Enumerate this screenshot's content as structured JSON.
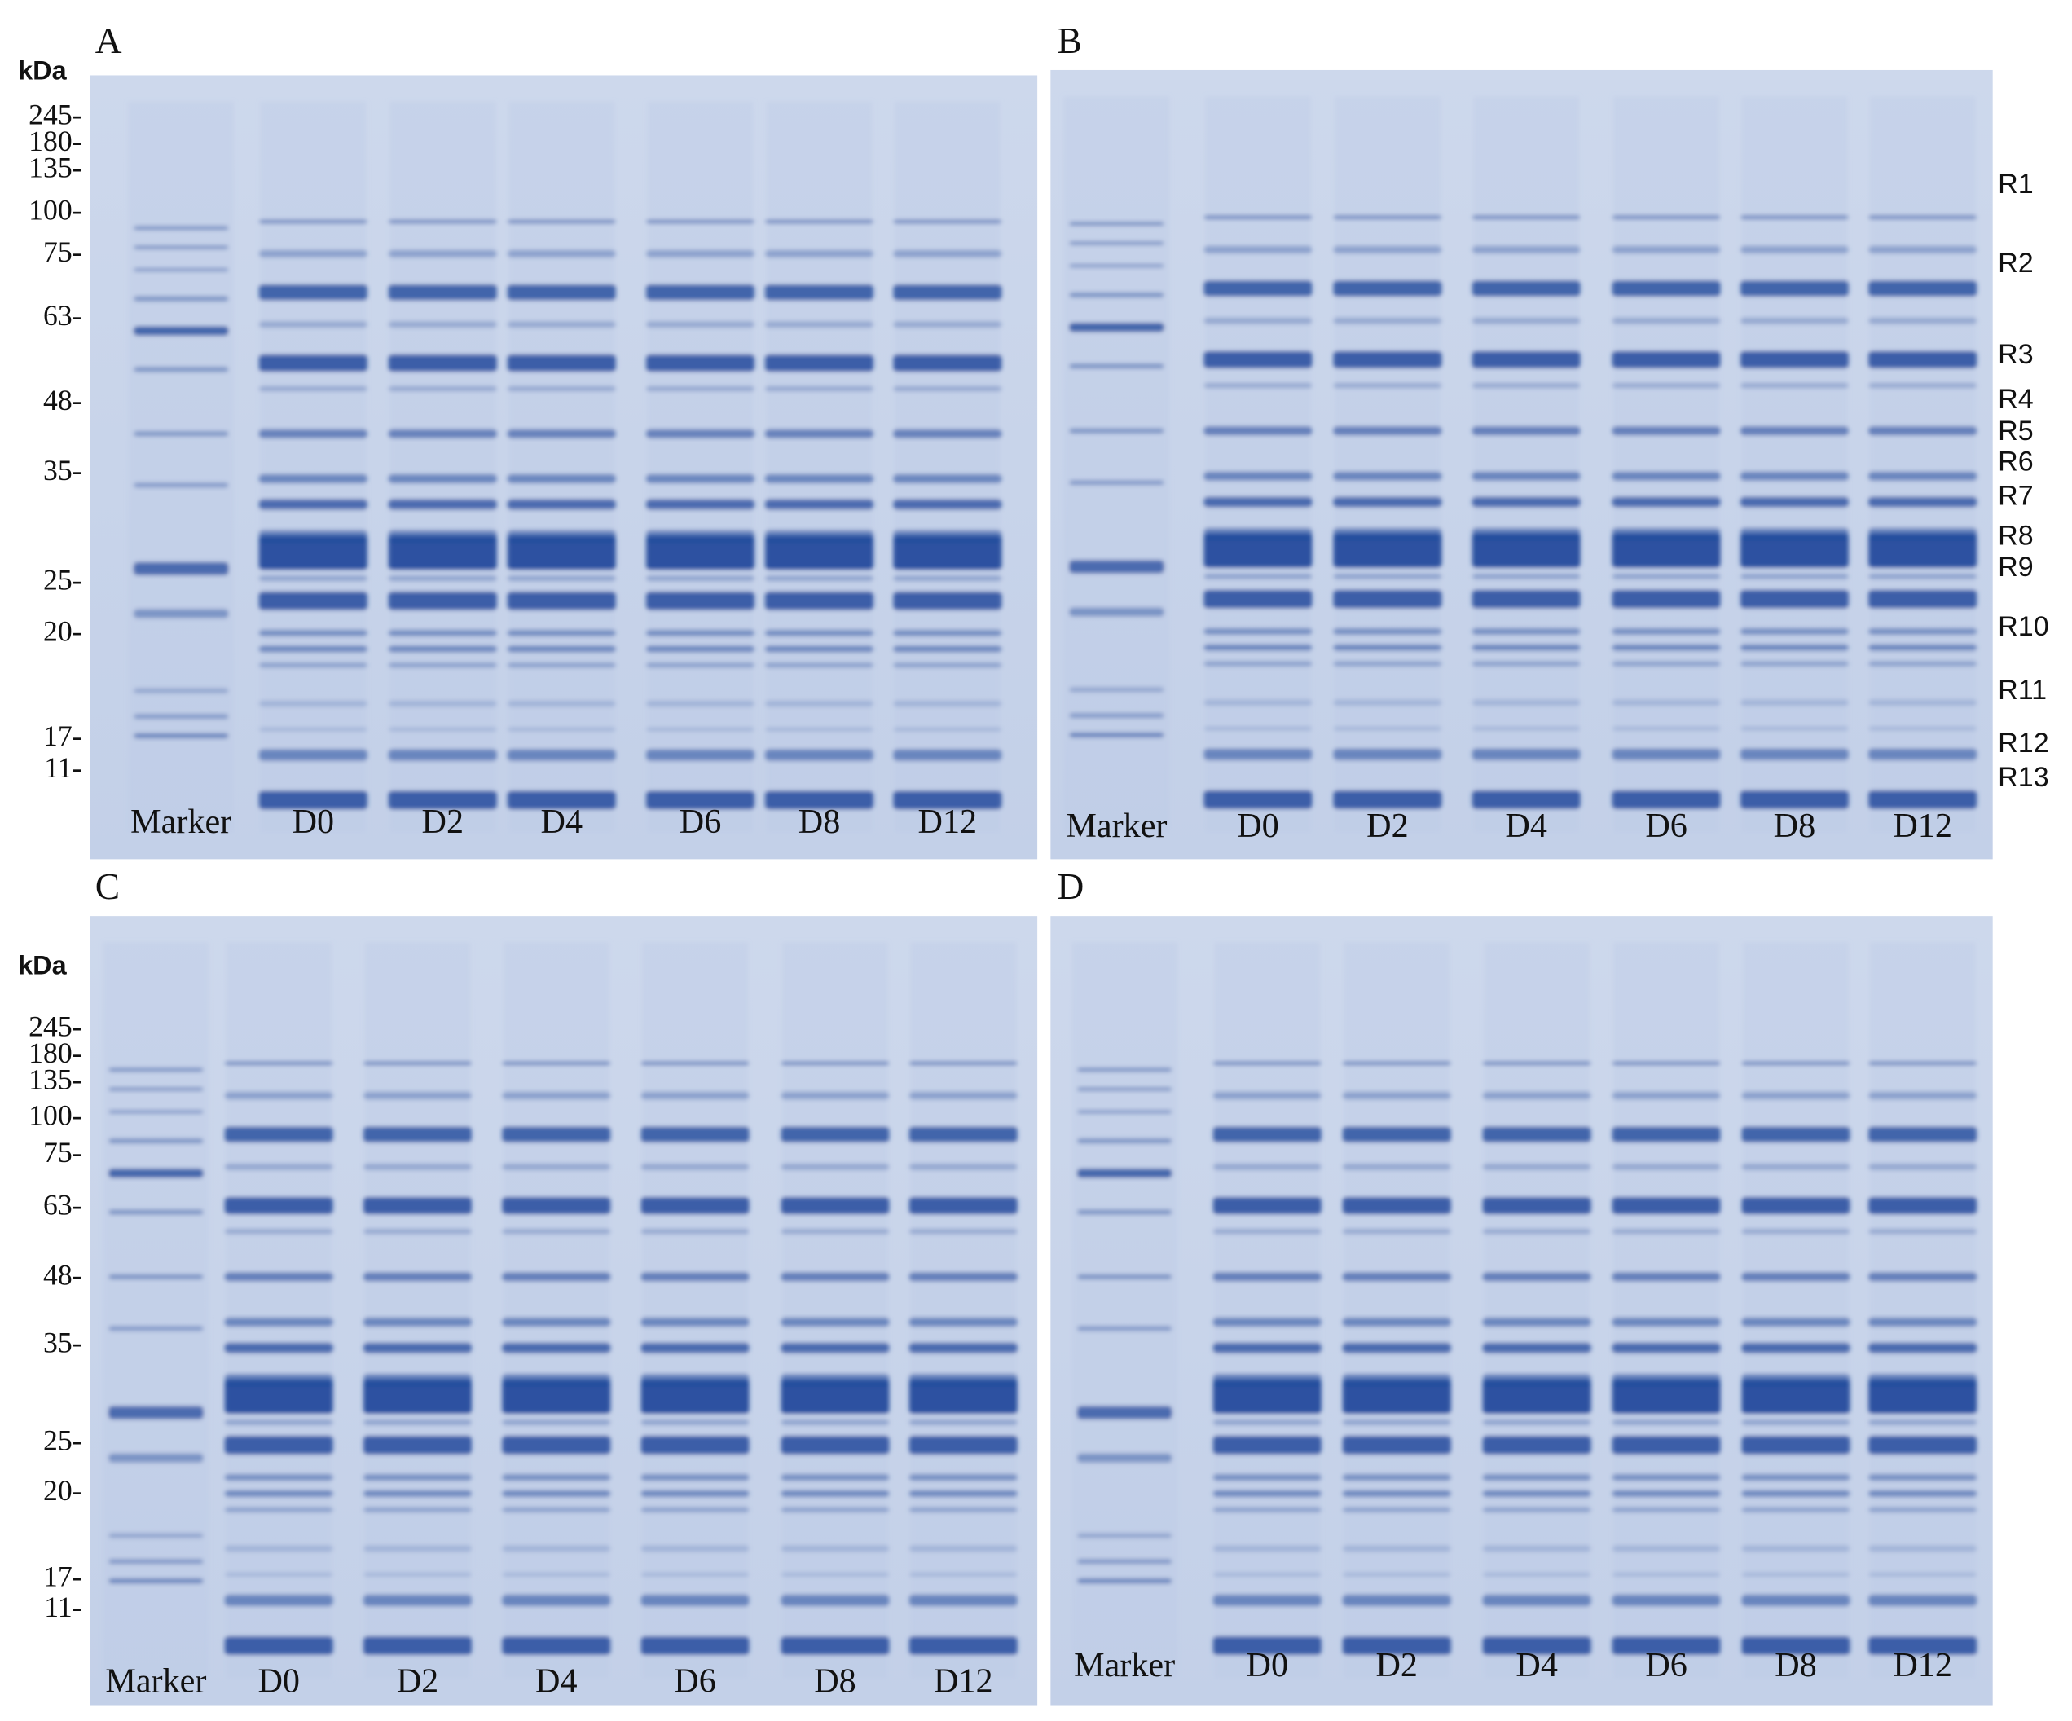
{
  "panels": [
    {
      "label": "A",
      "unit_label": "kDa",
      "markers": [
        "245-",
        "180-",
        "135-",
        "100-",
        "75-",
        "63-",
        "48-",
        "35-",
        "25-",
        "20-",
        "17-",
        "11-"
      ],
      "lanes": [
        "Marker",
        "D0",
        "D2",
        "D4",
        "D6",
        "D8",
        "D12"
      ]
    },
    {
      "label": "B",
      "lanes": [
        "Marker",
        "D0",
        "D2",
        "D4",
        "D6",
        "D8",
        "D12"
      ],
      "bands": [
        "R1",
        "R2",
        "R3",
        "R4",
        "R5",
        "R6",
        "R7",
        "R8",
        "R9",
        "R10",
        "R11",
        "R12",
        "R13"
      ]
    },
    {
      "label": "C",
      "unit_label": "kDa",
      "markers": [
        "245-",
        "180-",
        "135-",
        "100-",
        "75-",
        "63-",
        "48-",
        "35-",
        "25-",
        "20-",
        "17-",
        "11-"
      ],
      "lanes": [
        "Marker",
        "D0",
        "D2",
        "D4",
        "D6",
        "D8",
        "D12"
      ]
    },
    {
      "label": "D",
      "lanes": [
        "Marker",
        "D0",
        "D2",
        "D4",
        "D6",
        "D8",
        "D12"
      ]
    }
  ]
}
